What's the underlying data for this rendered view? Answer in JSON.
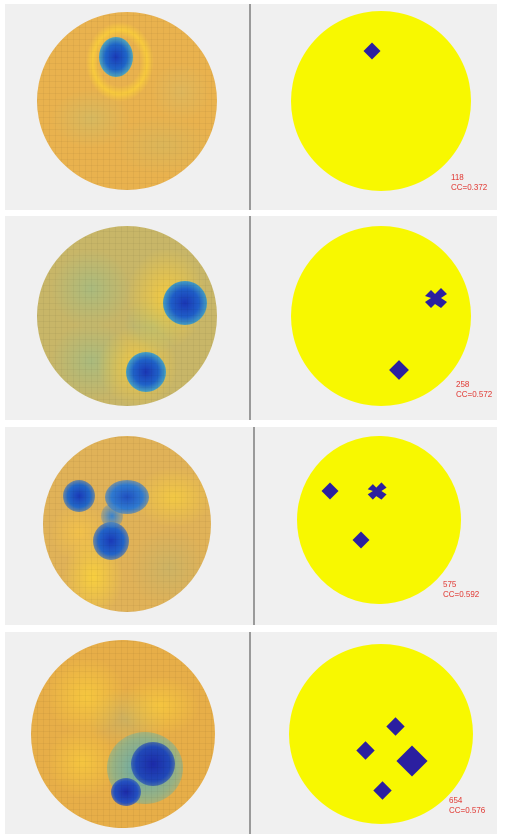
{
  "panels": [
    {
      "index_value": "118",
      "cc_value": "CC=0.372"
    },
    {
      "index_value": "258",
      "cc_value": "CC=0.572"
    },
    {
      "index_value": "575",
      "cc_value": "CC=0.592"
    },
    {
      "index_value": "654",
      "cc_value": "CC=0.576"
    }
  ],
  "colors": {
    "panel_background": "#f0f0f0",
    "reconstruction_base": "#e8b650",
    "ground_truth_base": "#f8f800",
    "inclusion_dark_blue": "#2b1fa0",
    "blob_blue": "#1d58c8",
    "label_red": "#e0342e",
    "divider_gray": "#9a9a9a"
  }
}
